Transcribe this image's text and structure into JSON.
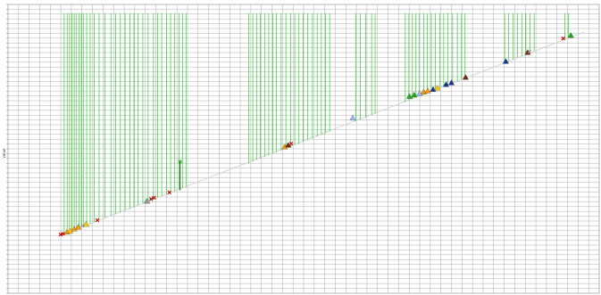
{
  "chart_data": {
    "type": "scatter",
    "title": "",
    "xlabel": "",
    "ylabel": "value",
    "xlim": [
      0,
      100
    ],
    "ylim": [
      0,
      100
    ],
    "grid": true,
    "colors": {
      "grid": "#9a9a9a",
      "stem": "#33cc33",
      "diagonal": "#cfcfcf",
      "cross": "#cc0000",
      "orange": "#ff9900",
      "gold": "#ffcc00",
      "navy": "#1a3399",
      "lightblue": "#99bbff",
      "green": "#22aa22",
      "brown": "#7a2a10",
      "grey": "#999999"
    },
    "stems": [
      [
        9.5,
        20.5,
        97
      ],
      [
        10.0,
        20.8,
        97
      ],
      [
        10.4,
        21.2,
        97
      ],
      [
        10.8,
        21.5,
        97
      ],
      [
        11.2,
        21.8,
        97
      ],
      [
        11.6,
        22.1,
        97
      ],
      [
        12.0,
        22.5,
        97
      ],
      [
        12.4,
        22.8,
        97
      ],
      [
        12.8,
        23.1,
        97
      ],
      [
        13.3,
        23.5,
        97
      ],
      [
        13.9,
        24.0,
        97
      ],
      [
        14.6,
        24.5,
        97
      ],
      [
        15.4,
        25.2,
        97
      ],
      [
        16.4,
        26.0,
        97
      ],
      [
        17.4,
        26.8,
        97
      ],
      [
        18.2,
        27.4,
        97
      ],
      [
        19.0,
        28.0,
        97
      ],
      [
        19.8,
        28.6,
        97
      ],
      [
        20.6,
        29.3,
        97
      ],
      [
        21.3,
        29.8,
        97
      ],
      [
        22.0,
        30.4,
        97
      ],
      [
        22.8,
        31.0,
        97
      ],
      [
        23.7,
        31.7,
        97
      ],
      [
        24.6,
        32.4,
        97
      ],
      [
        25.3,
        33.0,
        97
      ],
      [
        26.0,
        33.6,
        97
      ],
      [
        26.8,
        34.2,
        97
      ],
      [
        27.5,
        34.8,
        97
      ],
      [
        28.2,
        35.4,
        97
      ],
      [
        28.9,
        35.9,
        97
      ],
      [
        29.5,
        36.4,
        97
      ],
      [
        30.1,
        36.9,
        97
      ],
      [
        40.7,
        45.0,
        97
      ],
      [
        41.4,
        45.6,
        97
      ],
      [
        42.1,
        46.2,
        97
      ],
      [
        42.7,
        46.7,
        97
      ],
      [
        43.4,
        47.2,
        97
      ],
      [
        44.1,
        47.8,
        97
      ],
      [
        44.8,
        48.3,
        97
      ],
      [
        45.4,
        48.8,
        97
      ],
      [
        46.2,
        49.4,
        97
      ],
      [
        47.0,
        50.0,
        97
      ],
      [
        47.8,
        50.6,
        97
      ],
      [
        48.5,
        51.2,
        97
      ],
      [
        49.2,
        51.8,
        97
      ],
      [
        49.9,
        52.3,
        97
      ],
      [
        50.7,
        52.9,
        97
      ],
      [
        51.5,
        53.6,
        97
      ],
      [
        52.3,
        54.2,
        97
      ],
      [
        53.0,
        54.8,
        97
      ],
      [
        53.7,
        55.4,
        97
      ],
      [
        54.4,
        55.9,
        97
      ],
      [
        58.8,
        59.5,
        97
      ],
      [
        59.6,
        60.1,
        97
      ],
      [
        60.5,
        60.8,
        97
      ],
      [
        61.5,
        61.6,
        97
      ],
      [
        62.1,
        62.1,
        97
      ],
      [
        67.2,
        66.2,
        97
      ],
      [
        67.8,
        66.7,
        97
      ],
      [
        68.4,
        67.2,
        97
      ],
      [
        69.0,
        67.7,
        97
      ],
      [
        69.6,
        68.2,
        97
      ],
      [
        70.3,
        68.7,
        97
      ],
      [
        70.9,
        69.2,
        97
      ],
      [
        71.6,
        69.8,
        97
      ],
      [
        72.3,
        70.4,
        97
      ],
      [
        73.0,
        70.9,
        97
      ],
      [
        73.7,
        71.5,
        97
      ],
      [
        74.4,
        72.1,
        97
      ],
      [
        75.2,
        72.7,
        97
      ],
      [
        76.0,
        73.3,
        97
      ],
      [
        76.7,
        73.9,
        97
      ],
      [
        77.3,
        74.4,
        97
      ],
      [
        84.0,
        79.8,
        97
      ],
      [
        84.7,
        80.4,
        97
      ],
      [
        85.4,
        81.0,
        97
      ],
      [
        86.2,
        81.6,
        97
      ],
      [
        86.9,
        82.2,
        97
      ],
      [
        87.6,
        82.7,
        97
      ],
      [
        88.3,
        83.3,
        97
      ],
      [
        89.0,
        83.9,
        97
      ],
      [
        94.2,
        88.0,
        97
      ],
      [
        94.8,
        88.5,
        97
      ]
    ],
    "markers": [
      [
        8.9,
        20.3,
        "cross",
        "cross"
      ],
      [
        9.3,
        20.6,
        "cross",
        "cross"
      ],
      [
        10.0,
        21.2,
        "triangle",
        "orange"
      ],
      [
        10.5,
        21.6,
        "triangle",
        "gold"
      ],
      [
        11.2,
        22.3,
        "triangle",
        "orange"
      ],
      [
        11.9,
        22.9,
        "triangle",
        "orange"
      ],
      [
        12.6,
        23.4,
        "cross",
        "grey"
      ],
      [
        13.2,
        23.9,
        "triangle",
        "gold"
      ],
      [
        15.1,
        25.3,
        "cross",
        "cross"
      ],
      [
        23.5,
        31.9,
        "triangle",
        "grey"
      ],
      [
        24.2,
        32.6,
        "cross",
        "brown"
      ],
      [
        24.7,
        33.1,
        "cross",
        "cross"
      ],
      [
        27.3,
        34.9,
        "cross",
        "cross"
      ],
      [
        46.8,
        50.7,
        "triangle",
        "orange"
      ],
      [
        47.4,
        51.3,
        "triangle",
        "brown"
      ],
      [
        47.9,
        51.8,
        "cross",
        "cross"
      ],
      [
        58.3,
        60.7,
        "triangle",
        "lightblue"
      ],
      [
        67.9,
        68.2,
        "triangle",
        "green"
      ],
      [
        68.7,
        68.7,
        "triangle",
        "green"
      ],
      [
        69.6,
        69.2,
        "triangle",
        "lightblue"
      ],
      [
        70.3,
        69.7,
        "triangle",
        "orange"
      ],
      [
        71.0,
        70.1,
        "triangle",
        "orange"
      ],
      [
        71.9,
        70.6,
        "triangle",
        "navy"
      ],
      [
        72.6,
        71.1,
        "triangle",
        "gold"
      ],
      [
        74.1,
        72.3,
        "triangle",
        "navy"
      ],
      [
        75.0,
        72.9,
        "triangle",
        "navy"
      ],
      [
        77.4,
        74.8,
        "triangle",
        "brown"
      ],
      [
        84.2,
        80.3,
        "triangle",
        "navy"
      ],
      [
        87.9,
        83.4,
        "triangle",
        "brown"
      ],
      [
        88.2,
        83.7,
        "cross",
        "grey"
      ],
      [
        93.9,
        88.2,
        "cross",
        "cross"
      ],
      [
        95.2,
        89.3,
        "triangle",
        "green"
      ]
    ],
    "bars": [
      [
        29.1,
        35.6,
        45.6
      ]
    ],
    "bar_markers": [
      [
        29.1,
        45.6,
        "cross",
        "green"
      ]
    ],
    "diagonal": [
      [
        8.5,
        19.8
      ],
      [
        97.5,
        90.5
      ]
    ]
  }
}
